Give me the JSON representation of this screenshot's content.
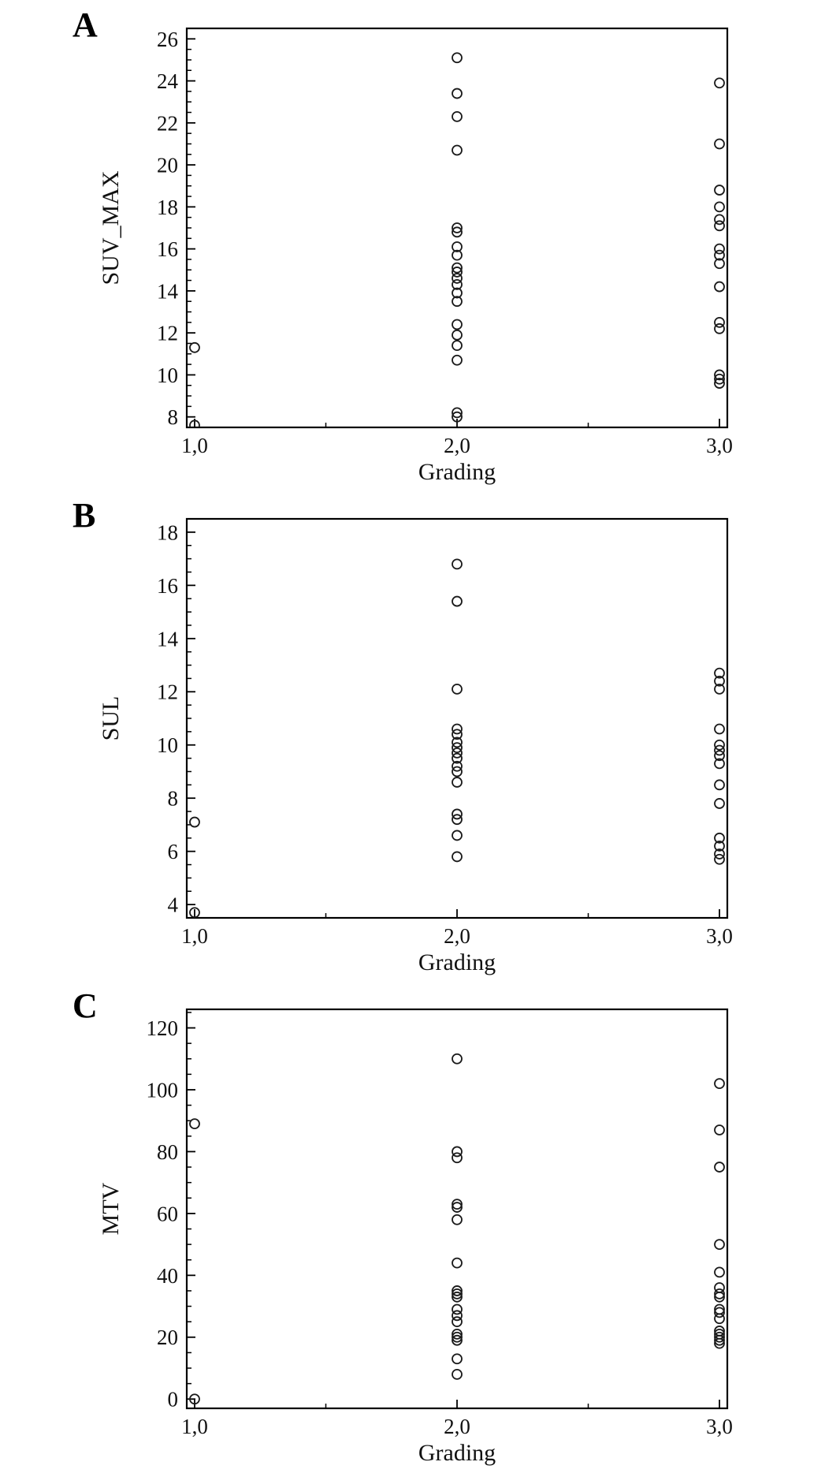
{
  "page": {
    "background": "#ffffff"
  },
  "colors": {
    "axis": "#000000",
    "marker": "#1a1a1a",
    "text": "#111111"
  },
  "chart_data": [
    {
      "panel": "A",
      "type": "scatter",
      "title": "",
      "xlabel": "Grading",
      "ylabel": "SUV_MAX",
      "xlim": [
        0.97,
        3.03
      ],
      "ylim": [
        7.5,
        26.5
      ],
      "x_ticks": [
        {
          "v": 1.0,
          "label": "1,0"
        },
        {
          "v": 2.0,
          "label": "2,0"
        },
        {
          "v": 3.0,
          "label": "3,0"
        }
      ],
      "x_minor_ticks": [
        1.5,
        2.5
      ],
      "y_ticks": [
        {
          "v": 8,
          "label": "8"
        },
        {
          "v": 10,
          "label": "10"
        },
        {
          "v": 12,
          "label": "12"
        },
        {
          "v": 14,
          "label": "14"
        },
        {
          "v": 16,
          "label": "16"
        },
        {
          "v": 18,
          "label": "18"
        },
        {
          "v": 20,
          "label": "20"
        },
        {
          "v": 22,
          "label": "22"
        },
        {
          "v": 24,
          "label": "24"
        },
        {
          "v": 26,
          "label": "26"
        }
      ],
      "y_minor_step": 0.5,
      "points": [
        [
          1.0,
          11.3
        ],
        [
          1.0,
          7.6
        ],
        [
          2.0,
          25.1
        ],
        [
          2.0,
          23.4
        ],
        [
          2.0,
          22.3
        ],
        [
          2.0,
          20.7
        ],
        [
          2.0,
          17.0
        ],
        [
          2.0,
          16.8
        ],
        [
          2.0,
          16.1
        ],
        [
          2.0,
          15.7
        ],
        [
          2.0,
          15.1
        ],
        [
          2.0,
          14.9
        ],
        [
          2.0,
          14.6
        ],
        [
          2.0,
          14.3
        ],
        [
          2.0,
          13.9
        ],
        [
          2.0,
          13.5
        ],
        [
          2.0,
          12.4
        ],
        [
          2.0,
          11.9
        ],
        [
          2.0,
          11.4
        ],
        [
          2.0,
          10.7
        ],
        [
          2.0,
          8.2
        ],
        [
          2.0,
          8.0
        ],
        [
          3.0,
          23.9
        ],
        [
          3.0,
          21.0
        ],
        [
          3.0,
          18.8
        ],
        [
          3.0,
          18.0
        ],
        [
          3.0,
          17.4
        ],
        [
          3.0,
          17.1
        ],
        [
          3.0,
          16.0
        ],
        [
          3.0,
          15.7
        ],
        [
          3.0,
          15.3
        ],
        [
          3.0,
          14.2
        ],
        [
          3.0,
          12.5
        ],
        [
          3.0,
          12.2
        ],
        [
          3.0,
          10.0
        ],
        [
          3.0,
          9.8
        ],
        [
          3.0,
          9.6
        ]
      ]
    },
    {
      "panel": "B",
      "type": "scatter",
      "title": "",
      "xlabel": "Grading",
      "ylabel": "SUL",
      "xlim": [
        0.97,
        3.03
      ],
      "ylim": [
        3.5,
        18.5
      ],
      "x_ticks": [
        {
          "v": 1.0,
          "label": "1,0"
        },
        {
          "v": 2.0,
          "label": "2,0"
        },
        {
          "v": 3.0,
          "label": "3,0"
        }
      ],
      "x_minor_ticks": [
        1.5,
        2.5
      ],
      "y_ticks": [
        {
          "v": 4,
          "label": "4"
        },
        {
          "v": 6,
          "label": "6"
        },
        {
          "v": 8,
          "label": "8"
        },
        {
          "v": 10,
          "label": "10"
        },
        {
          "v": 12,
          "label": "12"
        },
        {
          "v": 14,
          "label": "14"
        },
        {
          "v": 16,
          "label": "16"
        },
        {
          "v": 18,
          "label": "18"
        }
      ],
      "y_minor_step": 0.5,
      "points": [
        [
          1.0,
          7.1
        ],
        [
          1.0,
          3.7
        ],
        [
          2.0,
          16.8
        ],
        [
          2.0,
          15.4
        ],
        [
          2.0,
          12.1
        ],
        [
          2.0,
          10.6
        ],
        [
          2.0,
          10.4
        ],
        [
          2.0,
          10.1
        ],
        [
          2.0,
          9.9
        ],
        [
          2.0,
          9.7
        ],
        [
          2.0,
          9.5
        ],
        [
          2.0,
          9.2
        ],
        [
          2.0,
          9.0
        ],
        [
          2.0,
          8.6
        ],
        [
          2.0,
          7.4
        ],
        [
          2.0,
          7.2
        ],
        [
          2.0,
          6.6
        ],
        [
          2.0,
          5.8
        ],
        [
          3.0,
          12.7
        ],
        [
          3.0,
          12.4
        ],
        [
          3.0,
          12.1
        ],
        [
          3.0,
          10.6
        ],
        [
          3.0,
          10.0
        ],
        [
          3.0,
          9.8
        ],
        [
          3.0,
          9.6
        ],
        [
          3.0,
          9.3
        ],
        [
          3.0,
          8.5
        ],
        [
          3.0,
          7.8
        ],
        [
          3.0,
          6.5
        ],
        [
          3.0,
          6.2
        ],
        [
          3.0,
          5.9
        ],
        [
          3.0,
          5.7
        ]
      ]
    },
    {
      "panel": "C",
      "type": "scatter",
      "title": "",
      "xlabel": "Grading",
      "ylabel": "MTV",
      "xlim": [
        0.97,
        3.03
      ],
      "ylim": [
        -3,
        126
      ],
      "x_ticks": [
        {
          "v": 1.0,
          "label": "1,0"
        },
        {
          "v": 2.0,
          "label": "2,0"
        },
        {
          "v": 3.0,
          "label": "3,0"
        }
      ],
      "x_minor_ticks": [
        1.5,
        2.5
      ],
      "y_ticks": [
        {
          "v": 0,
          "label": "0"
        },
        {
          "v": 20,
          "label": "20"
        },
        {
          "v": 40,
          "label": "40"
        },
        {
          "v": 60,
          "label": "60"
        },
        {
          "v": 80,
          "label": "80"
        },
        {
          "v": 100,
          "label": "100"
        },
        {
          "v": 120,
          "label": "120"
        }
      ],
      "y_minor_step": 5,
      "points": [
        [
          1.0,
          89
        ],
        [
          1.0,
          0
        ],
        [
          2.0,
          110
        ],
        [
          2.0,
          80
        ],
        [
          2.0,
          78
        ],
        [
          2.0,
          63
        ],
        [
          2.0,
          62
        ],
        [
          2.0,
          58
        ],
        [
          2.0,
          44
        ],
        [
          2.0,
          35
        ],
        [
          2.0,
          34
        ],
        [
          2.0,
          33
        ],
        [
          2.0,
          29
        ],
        [
          2.0,
          27
        ],
        [
          2.0,
          25
        ],
        [
          2.0,
          21
        ],
        [
          2.0,
          20
        ],
        [
          2.0,
          19
        ],
        [
          2.0,
          13
        ],
        [
          2.0,
          8
        ],
        [
          3.0,
          102
        ],
        [
          3.0,
          87
        ],
        [
          3.0,
          75
        ],
        [
          3.0,
          50
        ],
        [
          3.0,
          41
        ],
        [
          3.0,
          36
        ],
        [
          3.0,
          34
        ],
        [
          3.0,
          33
        ],
        [
          3.0,
          29
        ],
        [
          3.0,
          28
        ],
        [
          3.0,
          26
        ],
        [
          3.0,
          22
        ],
        [
          3.0,
          21
        ],
        [
          3.0,
          20
        ],
        [
          3.0,
          19
        ],
        [
          3.0,
          18
        ]
      ]
    }
  ]
}
